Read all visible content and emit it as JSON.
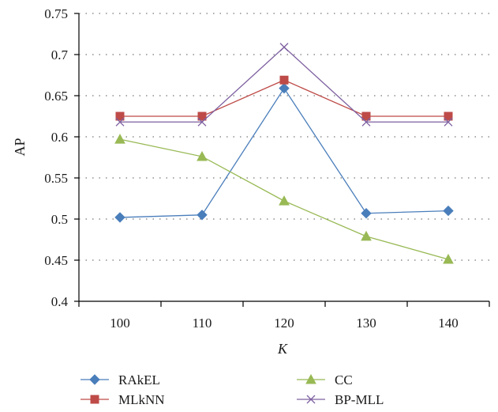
{
  "chart_data": {
    "type": "line",
    "title": "",
    "xlabel": "K",
    "ylabel": "AP",
    "categories": [
      "100",
      "110",
      "120",
      "130",
      "140"
    ],
    "ylim": [
      0.4,
      0.75
    ],
    "yticks": [
      "0.4",
      "0.45",
      "0.5",
      "0.55",
      "0.6",
      "0.65",
      "0.7",
      "0.75"
    ],
    "grid": "horizontal dotted",
    "legend_position": "bottom",
    "series": [
      {
        "name": "RAkEL",
        "color": "#4a7ebb",
        "marker": "diamond",
        "values": [
          0.502,
          0.505,
          0.659,
          0.507,
          0.51
        ]
      },
      {
        "name": "MLkNN",
        "color": "#be4b48",
        "marker": "square",
        "values": [
          0.625,
          0.625,
          0.669,
          0.625,
          0.625
        ]
      },
      {
        "name": "CC",
        "color": "#98b954",
        "marker": "triangle",
        "values": [
          0.597,
          0.576,
          0.522,
          0.479,
          0.451
        ]
      },
      {
        "name": "BP-MLL",
        "color": "#7d60a0",
        "marker": "x",
        "values": [
          0.618,
          0.618,
          0.709,
          0.618,
          0.618
        ]
      }
    ]
  }
}
